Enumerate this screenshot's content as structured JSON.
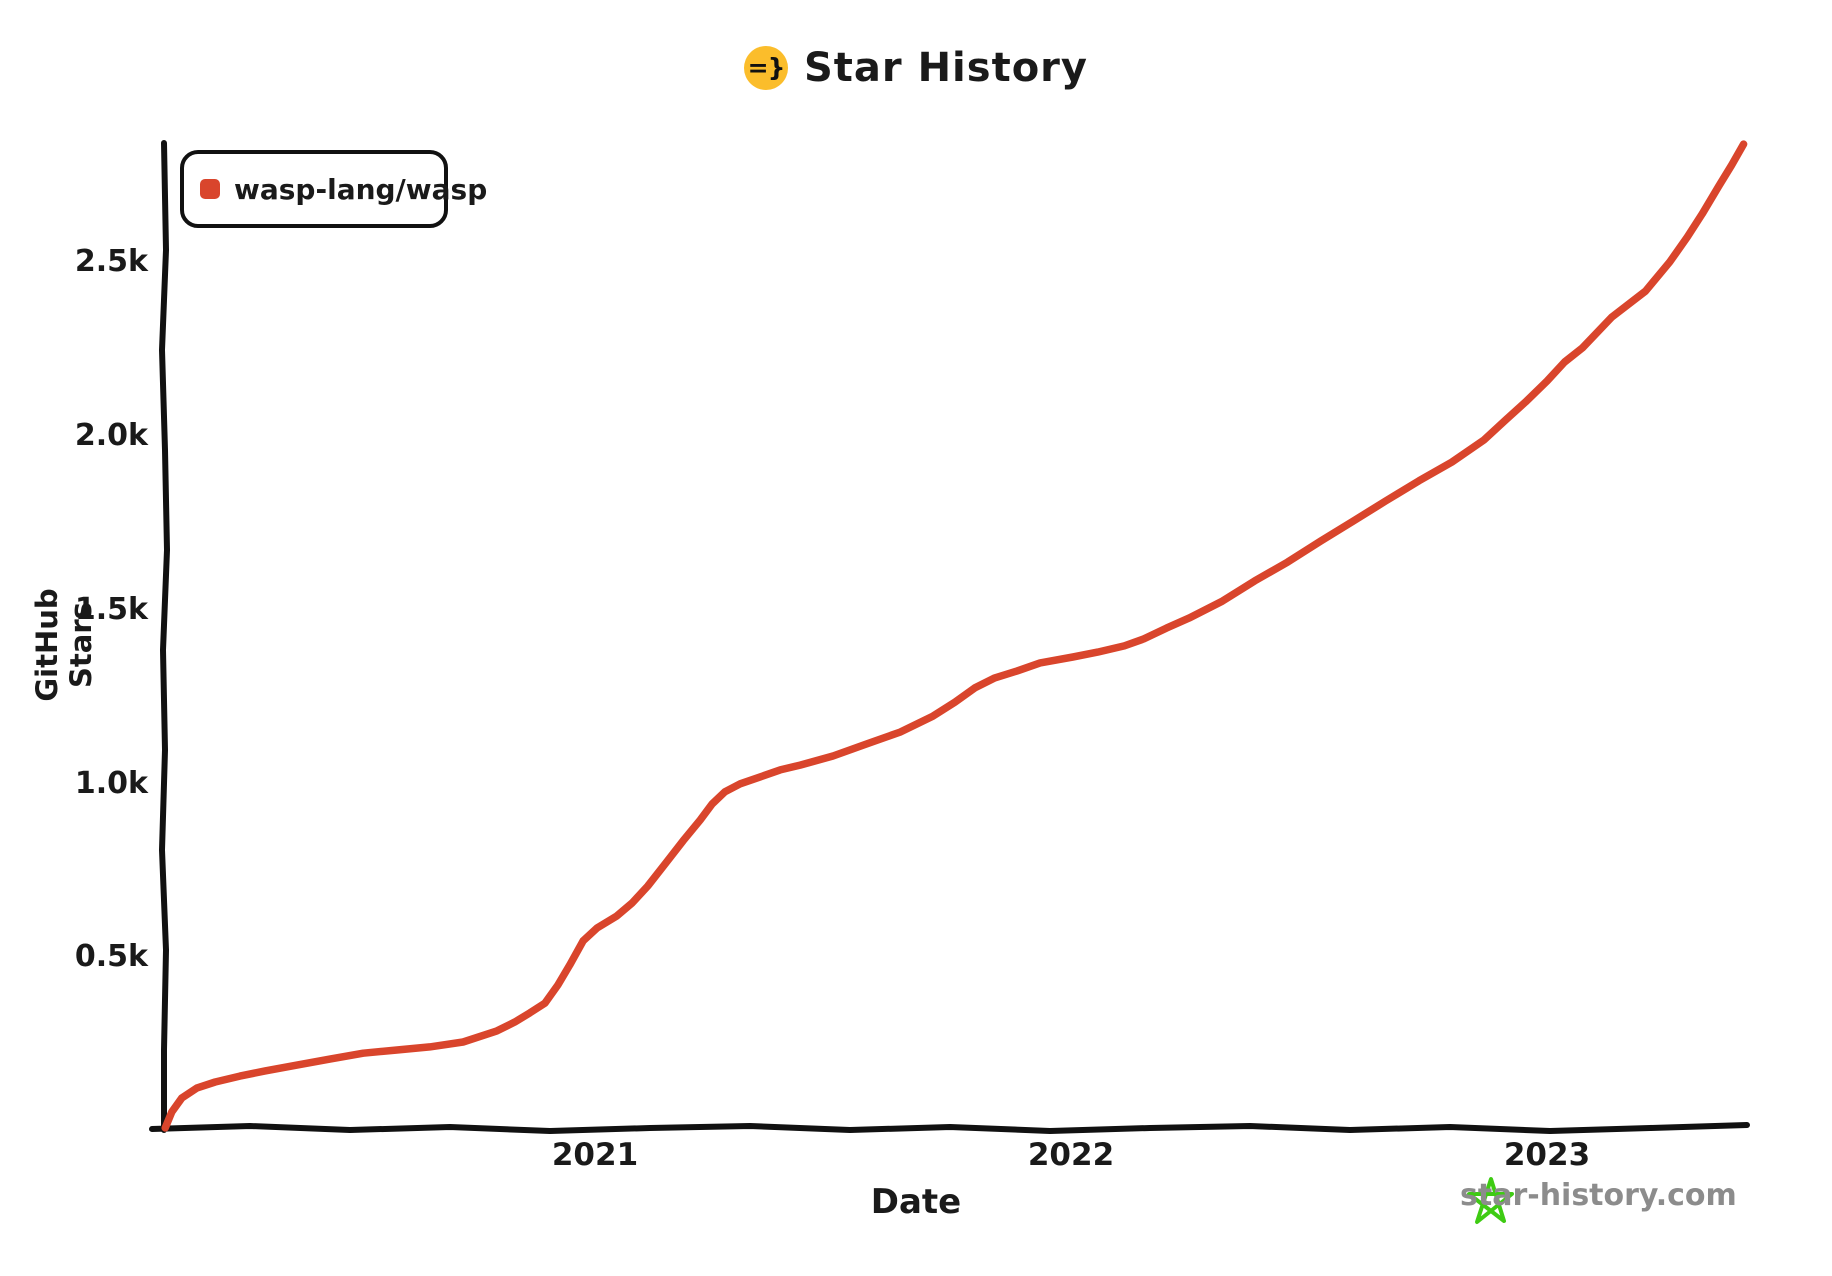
{
  "title": {
    "text": "Star History",
    "logo_glyph": "=}"
  },
  "legend": {
    "series_label": "wasp-lang/wasp"
  },
  "axis": {
    "xlabel": "Date",
    "ylabel": "GitHub Stars"
  },
  "watermark": {
    "text": "star-history.com"
  },
  "colors": {
    "series_red": "#d9452c",
    "logo_yellow": "#fbbd2b",
    "watermark_green": "#3ecb13",
    "watermark_gray": "#8c8c8c",
    "axis_black": "#111111"
  },
  "chart_data": {
    "type": "line",
    "title": "Star History",
    "xlabel": "Date",
    "ylabel": "GitHub Stars",
    "grid": false,
    "legend_position": "top-left",
    "x_ticks": [
      "2021",
      "2022",
      "2023"
    ],
    "x_tick_years": [
      2021,
      2022,
      2023
    ],
    "y_ticks": [
      "0.5k",
      "1.0k",
      "1.5k",
      "2.0k",
      "2.5k"
    ],
    "y_tick_values": [
      500,
      1000,
      1500,
      2000,
      2500
    ],
    "xlim_years": [
      2020.06,
      2023.45
    ],
    "ylim": [
      0,
      2900
    ],
    "series": [
      {
        "name": "wasp-lang/wasp",
        "color": "#d9452c",
        "points_format": [
          "decimal_year",
          "stars"
        ],
        "points": [
          [
            2020.097,
            9
          ],
          [
            2020.111,
            55
          ],
          [
            2020.132,
            95
          ],
          [
            2020.164,
            124
          ],
          [
            2020.202,
            141
          ],
          [
            2020.254,
            158
          ],
          [
            2020.307,
            173
          ],
          [
            2020.374,
            190
          ],
          [
            2020.443,
            207
          ],
          [
            2020.513,
            224
          ],
          [
            2020.584,
            233
          ],
          [
            2020.653,
            242
          ],
          [
            2020.723,
            256
          ],
          [
            2020.794,
            288
          ],
          [
            2020.832,
            314
          ],
          [
            2020.863,
            340
          ],
          [
            2020.895,
            368
          ],
          [
            2020.922,
            420
          ],
          [
            2020.947,
            478
          ],
          [
            2020.975,
            547
          ],
          [
            2021.004,
            584
          ],
          [
            2021.046,
            619
          ],
          [
            2021.078,
            656
          ],
          [
            2021.111,
            705
          ],
          [
            2021.147,
            768
          ],
          [
            2021.185,
            835
          ],
          [
            2021.221,
            895
          ],
          [
            2021.246,
            941
          ],
          [
            2021.273,
            976
          ],
          [
            2021.305,
            999
          ],
          [
            2021.347,
            1019
          ],
          [
            2021.389,
            1039
          ],
          [
            2021.431,
            1053
          ],
          [
            2021.5,
            1079
          ],
          [
            2021.571,
            1114
          ],
          [
            2021.641,
            1148
          ],
          [
            2021.71,
            1194
          ],
          [
            2021.756,
            1234
          ],
          [
            2021.798,
            1275
          ],
          [
            2021.84,
            1304
          ],
          [
            2021.887,
            1324
          ],
          [
            2021.935,
            1347
          ],
          [
            2022.004,
            1364
          ],
          [
            2022.056,
            1378
          ],
          [
            2022.112,
            1396
          ],
          [
            2022.153,
            1416
          ],
          [
            2022.2,
            1447
          ],
          [
            2022.248,
            1476
          ],
          [
            2022.318,
            1525
          ],
          [
            2022.386,
            1583
          ],
          [
            2022.455,
            1637
          ],
          [
            2022.525,
            1698
          ],
          [
            2022.593,
            1755
          ],
          [
            2022.661,
            1813
          ],
          [
            2022.731,
            1871
          ],
          [
            2022.8,
            1925
          ],
          [
            2022.868,
            1989
          ],
          [
            2022.913,
            2046
          ],
          [
            2022.955,
            2098
          ],
          [
            2023.0,
            2158
          ],
          [
            2023.037,
            2213
          ],
          [
            2023.074,
            2253
          ],
          [
            2023.136,
            2342
          ],
          [
            2023.207,
            2417
          ],
          [
            2023.258,
            2501
          ],
          [
            2023.295,
            2573
          ],
          [
            2023.326,
            2639
          ],
          [
            2023.361,
            2719
          ],
          [
            2023.388,
            2780
          ],
          [
            2023.413,
            2840
          ]
        ]
      }
    ]
  }
}
